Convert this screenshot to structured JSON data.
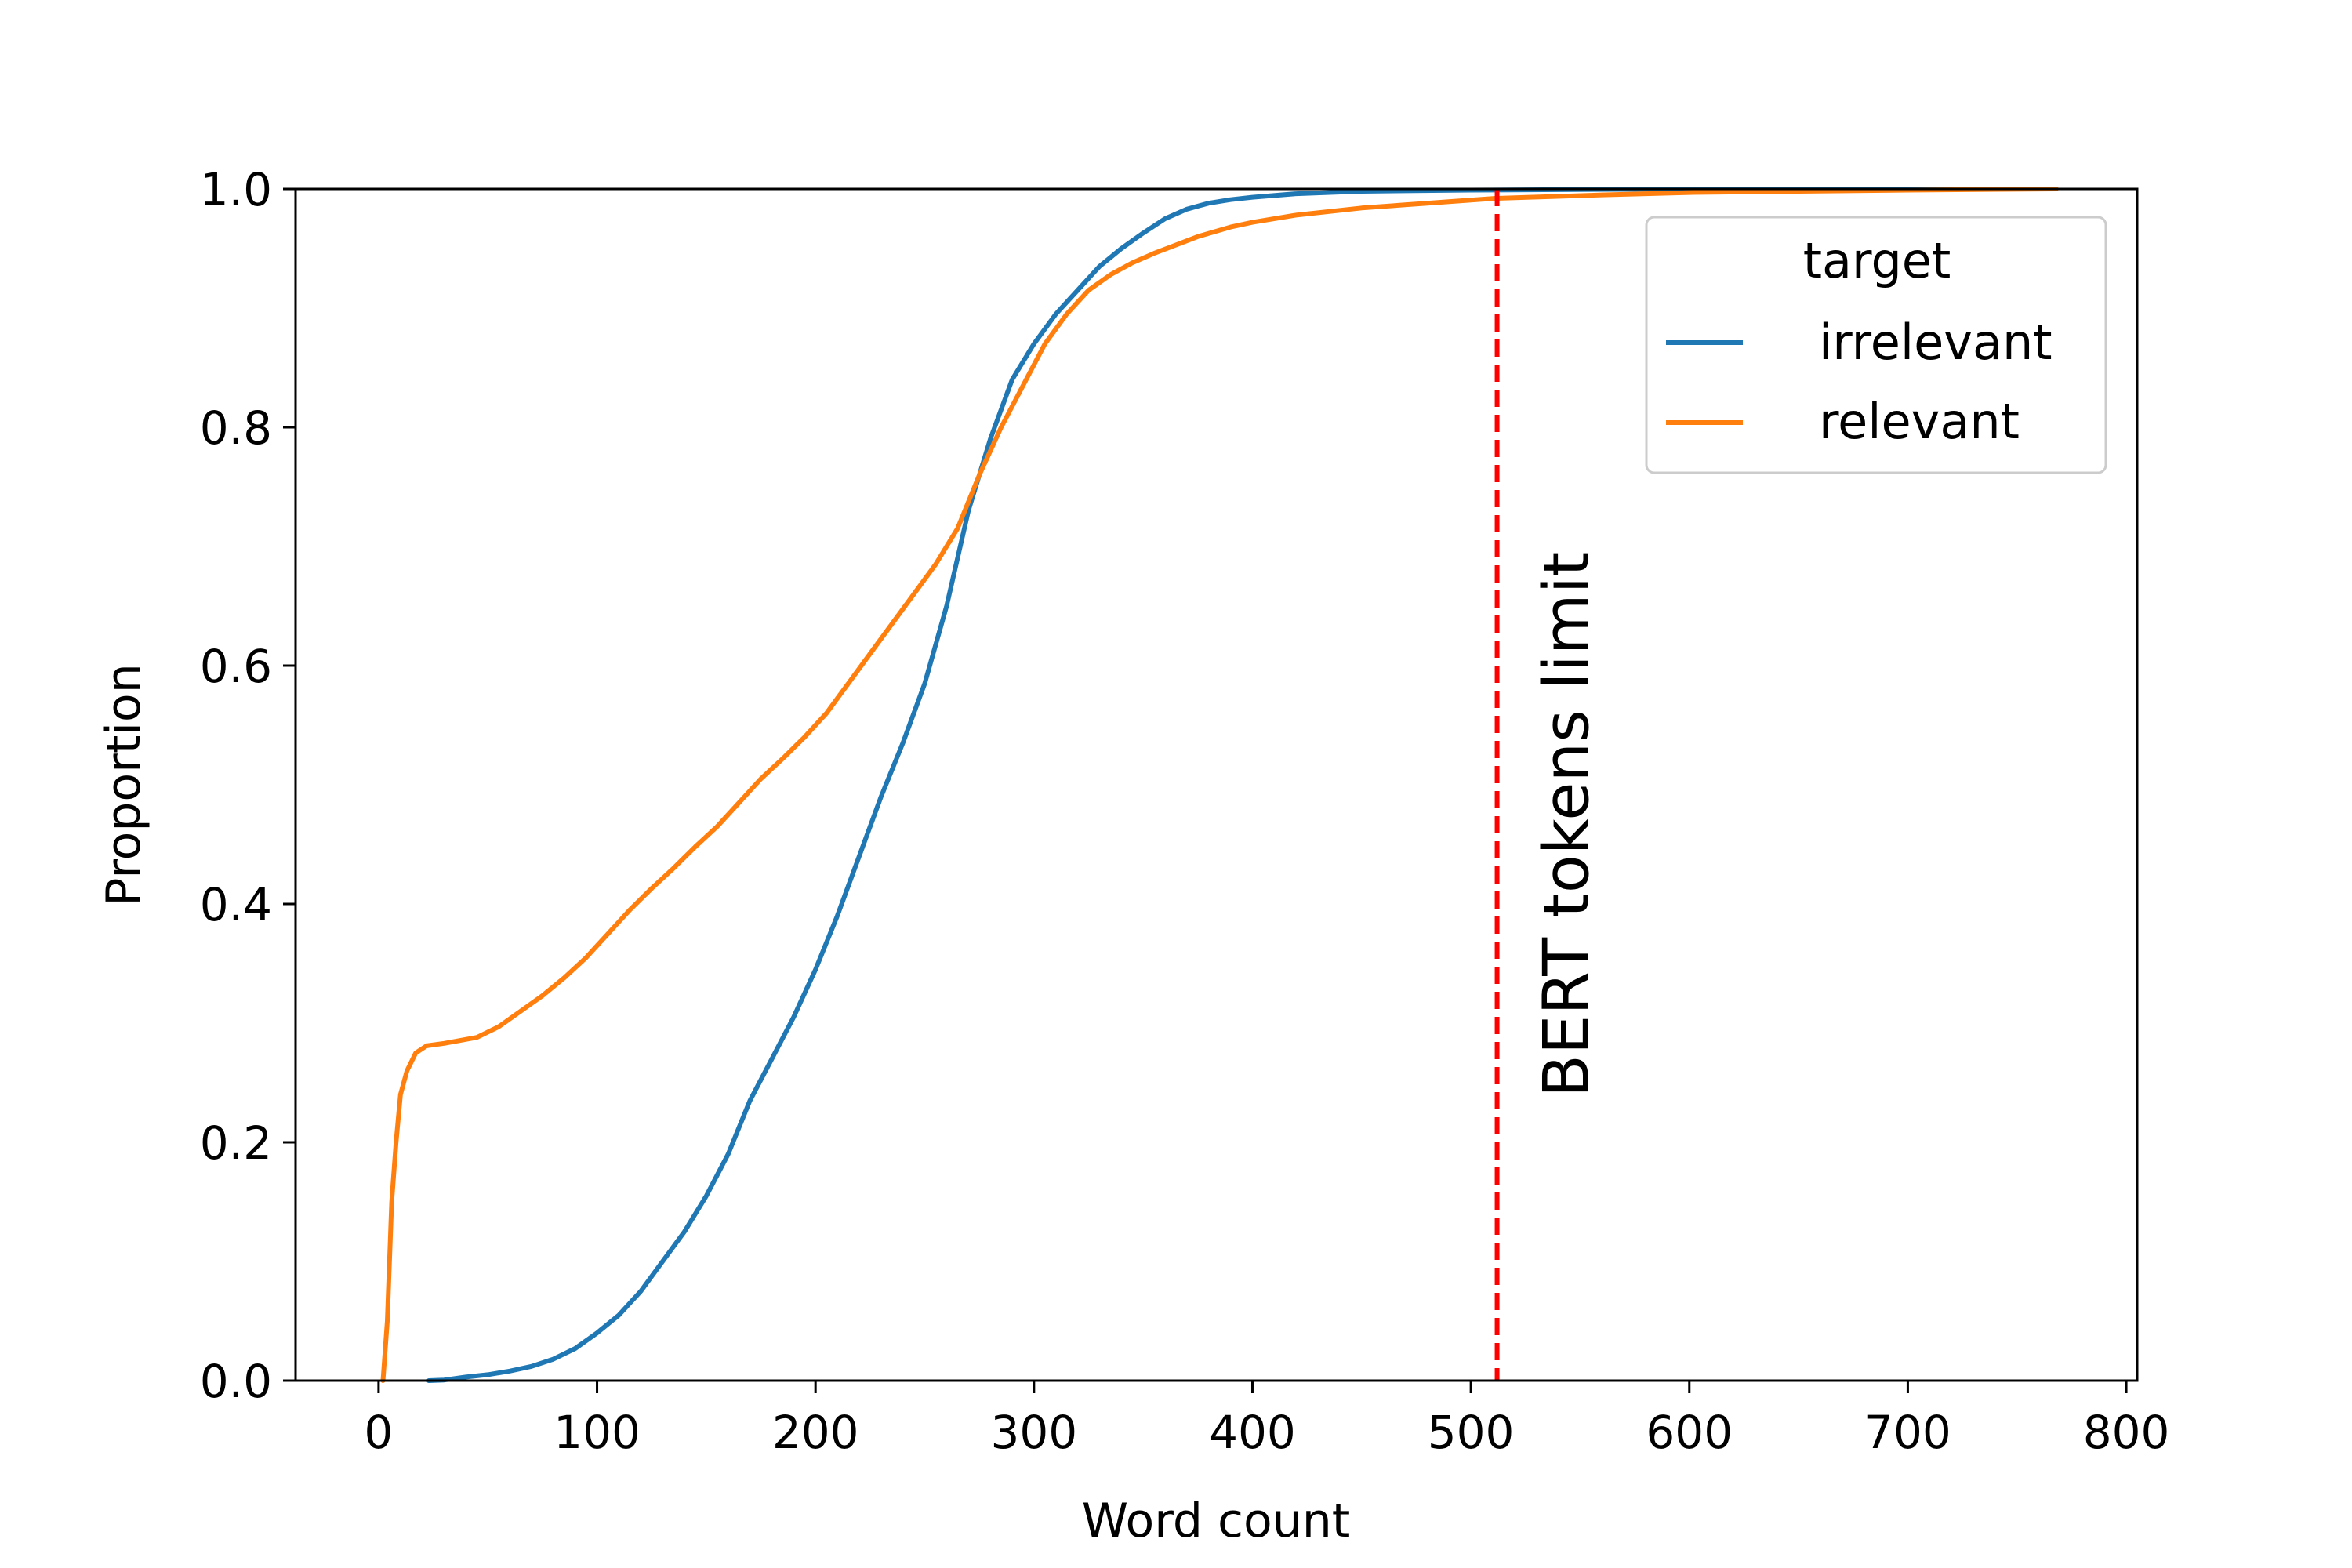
{
  "chart_data": {
    "type": "line",
    "subtype": "ecdf",
    "title": "",
    "xlabel": "Word count",
    "ylabel": "Proportion",
    "xlim": [
      -38,
      805
    ],
    "ylim": [
      0,
      1
    ],
    "x_ticks": [
      0,
      100,
      200,
      300,
      400,
      500,
      600,
      700,
      800
    ],
    "y_ticks": [
      0.0,
      0.2,
      0.4,
      0.6,
      0.8,
      1.0
    ],
    "x_tick_labels": [
      "0",
      "100",
      "200",
      "300",
      "400",
      "500",
      "600",
      "700",
      "800"
    ],
    "y_tick_labels": [
      "0.0",
      "0.2",
      "0.4",
      "0.6",
      "0.8",
      "1.0"
    ],
    "grid": false,
    "legend": {
      "title": "target",
      "placement": "top-right"
    },
    "series": [
      {
        "name": "irrelevant",
        "color": "#1f77b4",
        "points": [
          [
            23,
            0
          ],
          [
            30,
            0.0005
          ],
          [
            40,
            0.003
          ],
          [
            50,
            0.005
          ],
          [
            60,
            0.008
          ],
          [
            70,
            0.012
          ],
          [
            80,
            0.018
          ],
          [
            90,
            0.027
          ],
          [
            100,
            0.04
          ],
          [
            110,
            0.055
          ],
          [
            120,
            0.075
          ],
          [
            130,
            0.1
          ],
          [
            140,
            0.125
          ],
          [
            150,
            0.155
          ],
          [
            160,
            0.19
          ],
          [
            170,
            0.235
          ],
          [
            180,
            0.27
          ],
          [
            190,
            0.305
          ],
          [
            200,
            0.345
          ],
          [
            210,
            0.39
          ],
          [
            220,
            0.44
          ],
          [
            230,
            0.49
          ],
          [
            240,
            0.535
          ],
          [
            250,
            0.585
          ],
          [
            260,
            0.65
          ],
          [
            270,
            0.73
          ],
          [
            280,
            0.79
          ],
          [
            290,
            0.84
          ],
          [
            300,
            0.87
          ],
          [
            310,
            0.895
          ],
          [
            320,
            0.915
          ],
          [
            330,
            0.935
          ],
          [
            340,
            0.95
          ],
          [
            350,
            0.963
          ],
          [
            360,
            0.975
          ],
          [
            370,
            0.983
          ],
          [
            380,
            0.988
          ],
          [
            390,
            0.991
          ],
          [
            400,
            0.993
          ],
          [
            420,
            0.996
          ],
          [
            450,
            0.998
          ],
          [
            500,
            0.999
          ],
          [
            600,
            1.0
          ],
          [
            730,
            1.0
          ]
        ]
      },
      {
        "name": "relevant",
        "color": "#ff7f0e",
        "points": [
          [
            2,
            0
          ],
          [
            4,
            0.05
          ],
          [
            6,
            0.15
          ],
          [
            8,
            0.2
          ],
          [
            10,
            0.24
          ],
          [
            13,
            0.26
          ],
          [
            17,
            0.275
          ],
          [
            22,
            0.281
          ],
          [
            30,
            0.283
          ],
          [
            45,
            0.288
          ],
          [
            55,
            0.297
          ],
          [
            65,
            0.31
          ],
          [
            75,
            0.323
          ],
          [
            85,
            0.338
          ],
          [
            95,
            0.355
          ],
          [
            105,
            0.375
          ],
          [
            115,
            0.395
          ],
          [
            125,
            0.413
          ],
          [
            135,
            0.43
          ],
          [
            145,
            0.448
          ],
          [
            155,
            0.465
          ],
          [
            165,
            0.485
          ],
          [
            175,
            0.505
          ],
          [
            185,
            0.522
          ],
          [
            195,
            0.54
          ],
          [
            205,
            0.56
          ],
          [
            215,
            0.585
          ],
          [
            225,
            0.61
          ],
          [
            235,
            0.635
          ],
          [
            245,
            0.66
          ],
          [
            255,
            0.685
          ],
          [
            265,
            0.715
          ],
          [
            275,
            0.76
          ],
          [
            285,
            0.8
          ],
          [
            295,
            0.835
          ],
          [
            305,
            0.87
          ],
          [
            315,
            0.895
          ],
          [
            325,
            0.915
          ],
          [
            335,
            0.928
          ],
          [
            345,
            0.938
          ],
          [
            355,
            0.946
          ],
          [
            365,
            0.953
          ],
          [
            375,
            0.96
          ],
          [
            390,
            0.968
          ],
          [
            400,
            0.972
          ],
          [
            420,
            0.978
          ],
          [
            450,
            0.984
          ],
          [
            480,
            0.988
          ],
          [
            510,
            0.992
          ],
          [
            560,
            0.995
          ],
          [
            600,
            0.997
          ],
          [
            650,
            0.998
          ],
          [
            700,
            0.999
          ],
          [
            768,
            1.0
          ]
        ]
      }
    ],
    "annotations": [
      {
        "type": "vline",
        "x": 512,
        "color": "#ff0000",
        "style": "dashed",
        "label": "BERT tokens limit"
      }
    ]
  }
}
